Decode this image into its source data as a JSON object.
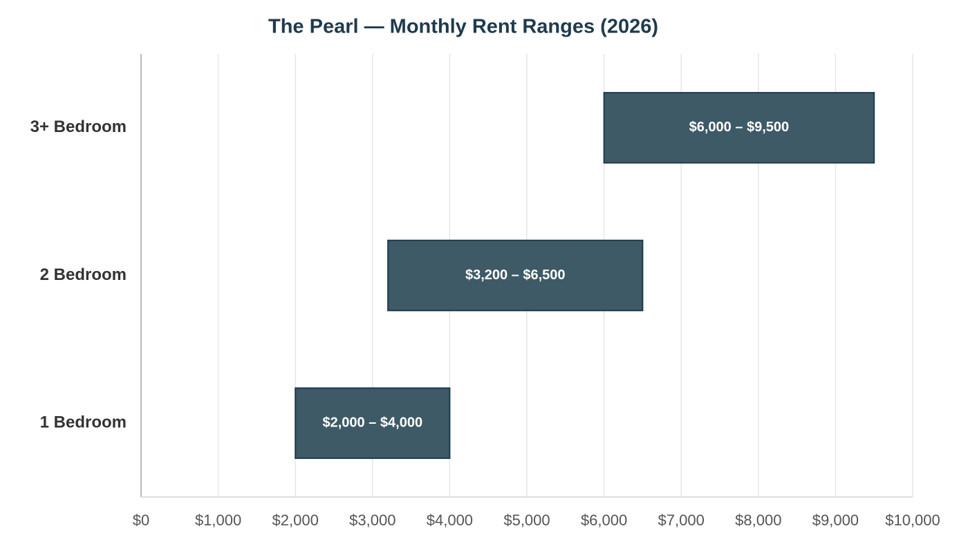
{
  "chart_data": {
    "type": "range_bar",
    "title": "The Pearl — Monthly Rent Ranges (2026)",
    "categories": [
      "1 Bedroom",
      "2 Bedroom",
      "3+ Bedroom"
    ],
    "low": [
      2000,
      3200,
      6000
    ],
    "high": [
      4000,
      6500,
      9500
    ],
    "value_labels": [
      "$2,000 – $4,000",
      "$3,200 – $6,500",
      "$6,000 – $9,500"
    ],
    "color": "#3d5a66",
    "xlim": [
      0,
      10000
    ],
    "xticks": [
      {
        "value": 0,
        "label": "$0"
      },
      {
        "value": 1000,
        "label": "$1,000"
      },
      {
        "value": 2000,
        "label": "$2,000"
      },
      {
        "value": 3000,
        "label": "$3,000"
      },
      {
        "value": 4000,
        "label": "$4,000"
      },
      {
        "value": 5000,
        "label": "$5,000"
      },
      {
        "value": 6000,
        "label": "$6,000"
      },
      {
        "value": 7000,
        "label": "$7,000"
      },
      {
        "value": 8000,
        "label": "$8,000"
      },
      {
        "value": 9000,
        "label": "$9,000"
      },
      {
        "value": 10000,
        "label": "$10,000"
      }
    ],
    "grid": true
  }
}
